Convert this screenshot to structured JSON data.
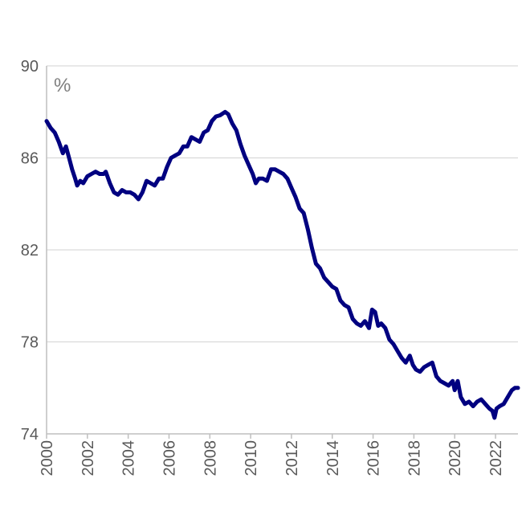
{
  "chart_data": {
    "type": "line",
    "title": "",
    "xlabel": "",
    "ylabel": "",
    "unit": "%",
    "ylim": [
      74,
      90
    ],
    "xlim": [
      2000,
      2023.1
    ],
    "y_ticks": [
      "74",
      "78",
      "82",
      "86",
      "90"
    ],
    "x_ticks": [
      "2000",
      "2002",
      "2004",
      "2006",
      "2008",
      "2010",
      "2012",
      "2014",
      "2016",
      "2018",
      "2020",
      "2022"
    ],
    "grid": true,
    "legend": "none",
    "series": [
      {
        "color": "#000080",
        "points": [
          [
            2000.0,
            87.6
          ],
          [
            2000.2,
            87.3
          ],
          [
            2000.4,
            87.1
          ],
          [
            2000.6,
            86.7
          ],
          [
            2000.8,
            86.2
          ],
          [
            2000.95,
            86.5
          ],
          [
            2001.1,
            86.0
          ],
          [
            2001.25,
            85.5
          ],
          [
            2001.4,
            85.1
          ],
          [
            2001.5,
            84.8
          ],
          [
            2001.65,
            85.0
          ],
          [
            2001.8,
            84.9
          ],
          [
            2002.0,
            85.2
          ],
          [
            2002.2,
            85.3
          ],
          [
            2002.4,
            85.4
          ],
          [
            2002.6,
            85.3
          ],
          [
            2002.8,
            85.3
          ],
          [
            2002.9,
            85.4
          ],
          [
            2003.1,
            84.9
          ],
          [
            2003.3,
            84.5
          ],
          [
            2003.5,
            84.4
          ],
          [
            2003.7,
            84.6
          ],
          [
            2003.9,
            84.5
          ],
          [
            2004.1,
            84.5
          ],
          [
            2004.3,
            84.4
          ],
          [
            2004.5,
            84.2
          ],
          [
            2004.7,
            84.5
          ],
          [
            2004.9,
            85.0
          ],
          [
            2005.1,
            84.9
          ],
          [
            2005.3,
            84.8
          ],
          [
            2005.5,
            85.1
          ],
          [
            2005.7,
            85.1
          ],
          [
            2005.9,
            85.6
          ],
          [
            2006.1,
            86.0
          ],
          [
            2006.3,
            86.1
          ],
          [
            2006.5,
            86.2
          ],
          [
            2006.7,
            86.5
          ],
          [
            2006.9,
            86.5
          ],
          [
            2007.1,
            86.9
          ],
          [
            2007.3,
            86.8
          ],
          [
            2007.5,
            86.7
          ],
          [
            2007.7,
            87.1
          ],
          [
            2007.9,
            87.2
          ],
          [
            2008.1,
            87.6
          ],
          [
            2008.3,
            87.8
          ],
          [
            2008.5,
            87.85
          ],
          [
            2008.75,
            88.0
          ],
          [
            2008.9,
            87.9
          ],
          [
            2009.1,
            87.5
          ],
          [
            2009.3,
            87.2
          ],
          [
            2009.5,
            86.6
          ],
          [
            2009.7,
            86.1
          ],
          [
            2009.9,
            85.7
          ],
          [
            2010.1,
            85.3
          ],
          [
            2010.25,
            84.9
          ],
          [
            2010.4,
            85.1
          ],
          [
            2010.6,
            85.1
          ],
          [
            2010.8,
            85.0
          ],
          [
            2011.0,
            85.5
          ],
          [
            2011.2,
            85.5
          ],
          [
            2011.4,
            85.4
          ],
          [
            2011.6,
            85.3
          ],
          [
            2011.8,
            85.1
          ],
          [
            2012.0,
            84.7
          ],
          [
            2012.2,
            84.3
          ],
          [
            2012.4,
            83.8
          ],
          [
            2012.6,
            83.6
          ],
          [
            2012.8,
            82.9
          ],
          [
            2013.0,
            82.1
          ],
          [
            2013.2,
            81.4
          ],
          [
            2013.4,
            81.2
          ],
          [
            2013.6,
            80.8
          ],
          [
            2013.8,
            80.6
          ],
          [
            2014.0,
            80.4
          ],
          [
            2014.2,
            80.3
          ],
          [
            2014.4,
            79.8
          ],
          [
            2014.6,
            79.6
          ],
          [
            2014.8,
            79.5
          ],
          [
            2015.0,
            79.0
          ],
          [
            2015.2,
            78.8
          ],
          [
            2015.4,
            78.7
          ],
          [
            2015.6,
            78.9
          ],
          [
            2015.8,
            78.6
          ],
          [
            2015.95,
            79.4
          ],
          [
            2016.1,
            79.3
          ],
          [
            2016.25,
            78.7
          ],
          [
            2016.4,
            78.8
          ],
          [
            2016.6,
            78.6
          ],
          [
            2016.8,
            78.1
          ],
          [
            2017.0,
            77.9
          ],
          [
            2017.2,
            77.6
          ],
          [
            2017.4,
            77.3
          ],
          [
            2017.6,
            77.1
          ],
          [
            2017.8,
            77.4
          ],
          [
            2017.95,
            77.0
          ],
          [
            2018.1,
            76.8
          ],
          [
            2018.3,
            76.7
          ],
          [
            2018.5,
            76.9
          ],
          [
            2018.7,
            77.0
          ],
          [
            2018.9,
            77.1
          ],
          [
            2019.1,
            76.5
          ],
          [
            2019.3,
            76.3
          ],
          [
            2019.5,
            76.2
          ],
          [
            2019.7,
            76.1
          ],
          [
            2019.9,
            76.3
          ],
          [
            2020.0,
            75.9
          ],
          [
            2020.15,
            76.3
          ],
          [
            2020.3,
            75.6
          ],
          [
            2020.5,
            75.3
          ],
          [
            2020.7,
            75.4
          ],
          [
            2020.9,
            75.2
          ],
          [
            2021.1,
            75.4
          ],
          [
            2021.3,
            75.5
          ],
          [
            2021.5,
            75.3
          ],
          [
            2021.7,
            75.1
          ],
          [
            2021.85,
            75.0
          ],
          [
            2021.95,
            74.7
          ],
          [
            2022.05,
            75.1
          ],
          [
            2022.2,
            75.2
          ],
          [
            2022.4,
            75.3
          ],
          [
            2022.6,
            75.6
          ],
          [
            2022.8,
            75.9
          ],
          [
            2022.95,
            76.0
          ],
          [
            2023.1,
            76.0
          ]
        ]
      }
    ]
  }
}
